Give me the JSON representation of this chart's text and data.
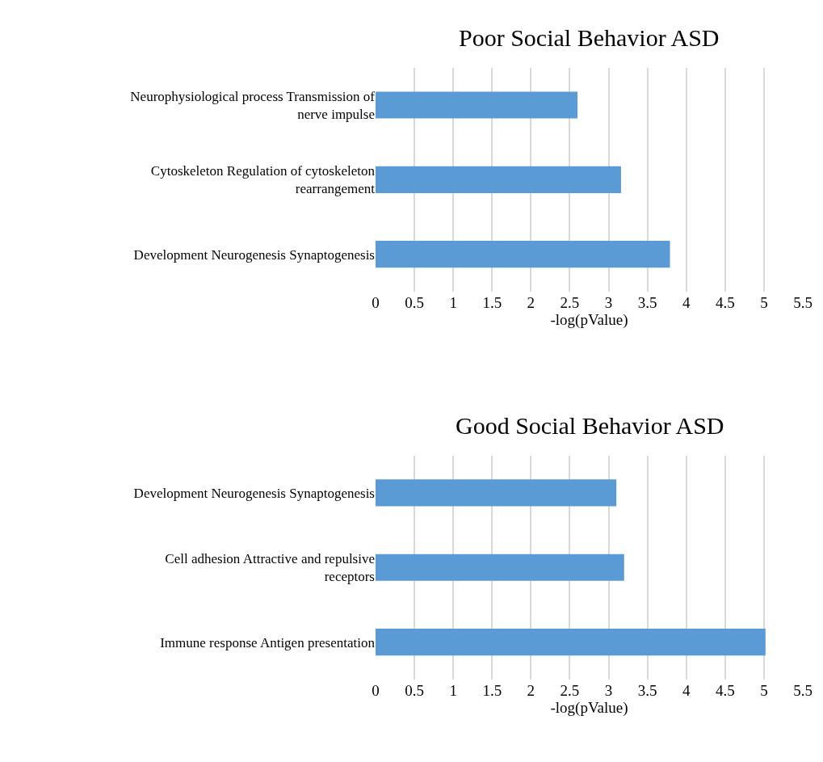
{
  "chart_data": [
    {
      "type": "bar",
      "orientation": "horizontal",
      "title": "Poor Social Behavior ASD",
      "xlabel": "-log(pValue)",
      "categories": [
        "Neurophysiological process Transmission of nerve impulse",
        "Cytoskeleton Regulation of cytoskeleton rearrangement",
        "Development Neurogenesis Synaptogenesis"
      ],
      "values": [
        2.6,
        3.16,
        3.79
      ],
      "color": "#5b9bd5",
      "xlim": [
        0,
        5.5
      ],
      "xticks": [
        0,
        0.5,
        1,
        1.5,
        2,
        2.5,
        3,
        3.5,
        4,
        4.5,
        5,
        5.5
      ],
      "grid": "x"
    },
    {
      "type": "bar",
      "orientation": "horizontal",
      "title": "Good Social Behavior ASD",
      "xlabel": "-log(pValue)",
      "categories": [
        "Development Neurogenesis Synaptogenesis",
        "Cell adhesion Attractive and repulsive receptors",
        "Immune response Antigen presentation"
      ],
      "values": [
        3.1,
        3.2,
        5.02
      ],
      "color": "#5b9bd5",
      "xlim": [
        0,
        5.5
      ],
      "xticks": [
        0,
        0.5,
        1,
        1.5,
        2,
        2.5,
        3,
        3.5,
        4,
        4.5,
        5,
        5.5
      ],
      "grid": "x"
    }
  ]
}
